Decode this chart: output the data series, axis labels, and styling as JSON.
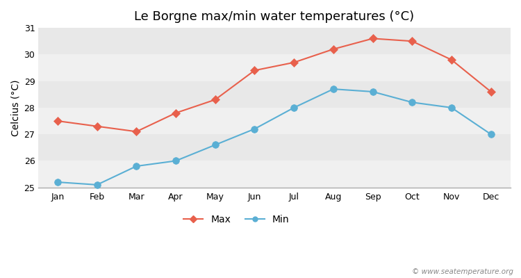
{
  "title": "Le Borgne max/min water temperatures (°C)",
  "ylabel": "Celcius (°C)",
  "months": [
    "Jan",
    "Feb",
    "Mar",
    "Apr",
    "May",
    "Jun",
    "Jul",
    "Aug",
    "Sep",
    "Oct",
    "Nov",
    "Dec"
  ],
  "max_values": [
    27.5,
    27.3,
    27.1,
    27.8,
    28.3,
    29.4,
    29.7,
    30.2,
    30.6,
    30.5,
    29.8,
    28.6
  ],
  "min_values": [
    25.2,
    25.1,
    25.8,
    26.0,
    26.6,
    27.2,
    28.0,
    28.7,
    28.6,
    28.2,
    28.0,
    27.0
  ],
  "max_color": "#e8604c",
  "min_color": "#5aafd4",
  "fig_bg_color": "#ffffff",
  "stripe_light": "#f0f0f0",
  "stripe_dark": "#e8e8e8",
  "bottom_line_color": "#aaaaaa",
  "ylim_min": 25,
  "ylim_max": 31,
  "yticks": [
    25,
    26,
    27,
    28,
    29,
    30,
    31
  ],
  "watermark": "© www.seatemperature.org",
  "title_fontsize": 13,
  "axis_label_fontsize": 10,
  "tick_fontsize": 9,
  "legend_fontsize": 10
}
